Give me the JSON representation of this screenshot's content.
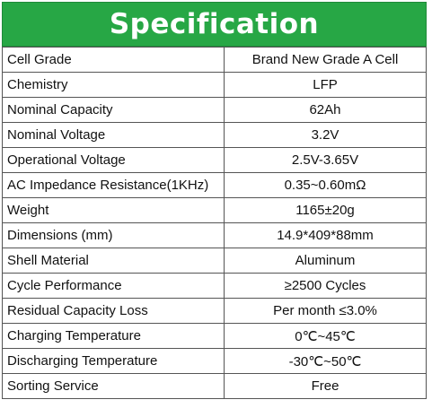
{
  "header": {
    "title": "Specification",
    "background": "#27a745",
    "text_color": "#ffffff"
  },
  "rows": [
    {
      "label": "Cell Grade",
      "value": "Brand New Grade A Cell"
    },
    {
      "label": "Chemistry",
      "value": "LFP"
    },
    {
      "label": "Nominal Capacity",
      "value": "62Ah"
    },
    {
      "label": "Nominal Voltage",
      "value": "3.2V"
    },
    {
      "label": "Operational Voltage",
      "value": "2.5V-3.65V"
    },
    {
      "label": "AC Impedance Resistance(1KHz)",
      "value": "0.35~0.60mΩ"
    },
    {
      "label": "Weight",
      "value": "1165±20g"
    },
    {
      "label": "Dimensions (mm)",
      "value": "14.9*409*88mm"
    },
    {
      "label": "Shell Material",
      "value": "Aluminum"
    },
    {
      "label": "Cycle Performance",
      "value": "≥2500 Cycles"
    },
    {
      "label": "Residual Capacity Loss",
      "value": "Per month ≤3.0%"
    },
    {
      "label": "Charging Temperature",
      "value": "0℃~45℃"
    },
    {
      "label": "Discharging Temperature",
      "value": "-30℃~50℃"
    },
    {
      "label": "Sorting Service",
      "value": "Free"
    }
  ]
}
